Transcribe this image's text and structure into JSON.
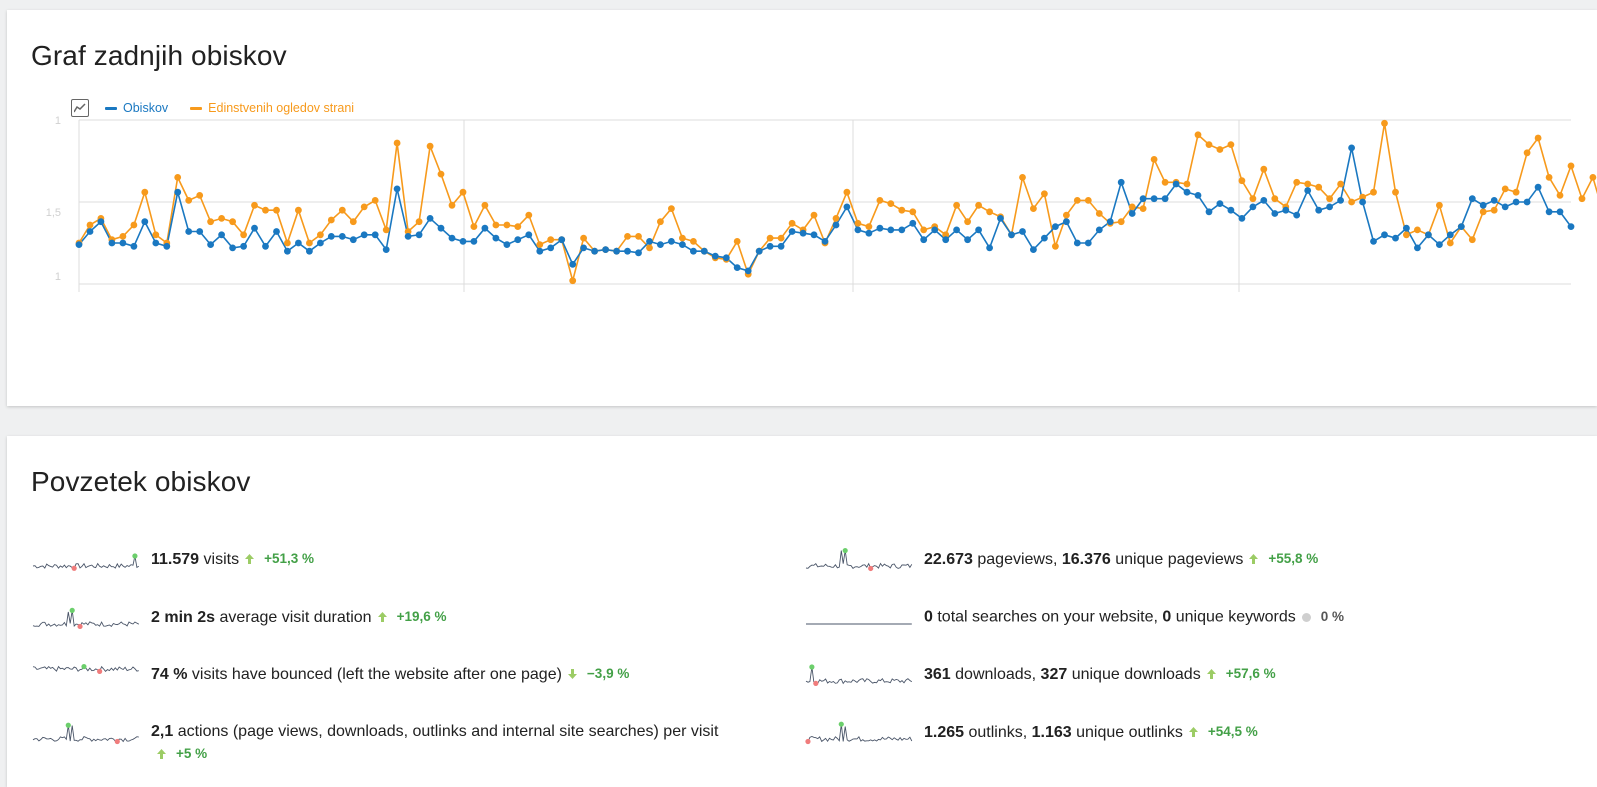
{
  "graph": {
    "title": "Graf zadnjih obiskov",
    "legend": [
      {
        "name": "Obiskov",
        "color": "#1a78c1"
      },
      {
        "name": "Edinstvenih ogledov strani",
        "color": "#f79a1c"
      }
    ],
    "icon": "chart-line-icon"
  },
  "chart_data": {
    "type": "line",
    "yticks": [
      "1",
      "1,5",
      "1"
    ],
    "grid": true,
    "legend_placement": "top-left",
    "series": [
      {
        "name": "Obiskov",
        "color": "#1a78c1",
        "values": [
          0.24,
          0.32,
          0.38,
          0.25,
          0.25,
          0.23,
          0.38,
          0.25,
          0.23,
          0.56,
          0.32,
          0.32,
          0.24,
          0.3,
          0.22,
          0.23,
          0.34,
          0.23,
          0.32,
          0.2,
          0.25,
          0.2,
          0.25,
          0.29,
          0.29,
          0.27,
          0.3,
          0.3,
          0.21,
          0.58,
          0.29,
          0.3,
          0.4,
          0.34,
          0.28,
          0.26,
          0.26,
          0.34,
          0.28,
          0.24,
          0.27,
          0.3,
          0.2,
          0.22,
          0.27,
          0.12,
          0.22,
          0.2,
          0.21,
          0.2,
          0.2,
          0.19,
          0.26,
          0.24,
          0.26,
          0.24,
          0.2,
          0.2,
          0.17,
          0.16,
          0.1,
          0.08,
          0.2,
          0.23,
          0.23,
          0.32,
          0.31,
          0.3,
          0.26,
          0.36,
          0.47,
          0.33,
          0.31,
          0.34,
          0.33,
          0.33,
          0.37,
          0.27,
          0.33,
          0.27,
          0.33,
          0.27,
          0.33,
          0.22,
          0.4,
          0.3,
          0.32,
          0.21,
          0.28,
          0.35,
          0.38,
          0.25,
          0.25,
          0.33,
          0.38,
          0.62,
          0.43,
          0.52,
          0.52,
          0.52,
          0.61,
          0.56,
          0.54,
          0.44,
          0.49,
          0.45,
          0.4,
          0.47,
          0.51,
          0.43,
          0.45,
          0.42,
          0.57,
          0.45,
          0.47,
          0.51,
          0.83,
          0.5,
          0.26,
          0.3,
          0.28,
          0.34,
          0.22,
          0.3,
          0.24,
          0.3,
          0.35,
          0.52,
          0.48,
          0.51,
          0.47,
          0.5,
          0.5,
          0.59,
          0.44,
          0.44,
          0.35
        ]
      },
      {
        "name": "Edinstvenih ogledov strani",
        "color": "#f79a1c",
        "values": [
          0.25,
          0.36,
          0.4,
          0.27,
          0.29,
          0.36,
          0.56,
          0.3,
          0.25,
          0.65,
          0.51,
          0.54,
          0.38,
          0.4,
          0.38,
          0.3,
          0.48,
          0.45,
          0.45,
          0.25,
          0.45,
          0.25,
          0.3,
          0.39,
          0.45,
          0.38,
          0.47,
          0.51,
          0.33,
          0.86,
          0.32,
          0.38,
          0.84,
          0.67,
          0.48,
          0.56,
          0.35,
          0.48,
          0.36,
          0.36,
          0.35,
          0.42,
          0.24,
          0.27,
          0.27,
          0.02,
          0.28,
          0.2,
          0.21,
          0.2,
          0.29,
          0.29,
          0.22,
          0.38,
          0.46,
          0.28,
          0.26,
          0.2,
          0.16,
          0.15,
          0.26,
          0.06,
          0.2,
          0.28,
          0.28,
          0.37,
          0.33,
          0.42,
          0.25,
          0.4,
          0.56,
          0.37,
          0.35,
          0.51,
          0.49,
          0.45,
          0.44,
          0.33,
          0.35,
          0.3,
          0.48,
          0.38,
          0.48,
          0.44,
          0.41,
          0.3,
          0.65,
          0.46,
          0.55,
          0.23,
          0.42,
          0.51,
          0.51,
          0.43,
          0.37,
          0.38,
          0.47,
          0.46,
          0.76,
          0.62,
          0.62,
          0.61,
          0.91,
          0.85,
          0.82,
          0.85,
          0.63,
          0.52,
          0.7,
          0.52,
          0.47,
          0.62,
          0.61,
          0.59,
          0.52,
          0.61,
          0.5,
          0.53,
          0.56,
          0.98,
          0.56,
          0.3,
          0.33,
          0.3,
          0.48,
          0.25,
          0.35,
          0.27,
          0.44,
          0.45,
          0.58,
          0.56,
          0.8,
          0.89,
          0.65,
          0.54,
          0.72,
          0.52,
          0.65,
          0.42
        ]
      }
    ]
  },
  "summary": {
    "title": "Povzetek obiskov",
    "metrics": [
      {
        "id": "visits",
        "parts": [
          {
            "b": "11.579"
          },
          {
            "t": " visits"
          }
        ],
        "trend": "+51,3 %",
        "dir": "up"
      },
      {
        "id": "pageviews",
        "parts": [
          {
            "b": "22.673"
          },
          {
            "t": " pageviews, "
          },
          {
            "b": "16.376"
          },
          {
            "t": " unique pageviews"
          }
        ],
        "trend": "+55,8 %",
        "dir": "up"
      },
      {
        "id": "duration",
        "parts": [
          {
            "b": "2 min 2s"
          },
          {
            "t": " average visit duration"
          }
        ],
        "trend": "+19,6 %",
        "dir": "up"
      },
      {
        "id": "searches",
        "parts": [
          {
            "b": "0"
          },
          {
            "t": " total searches on your website, "
          },
          {
            "b": "0"
          },
          {
            "t": " unique keywords"
          }
        ],
        "trend": "0 %",
        "dir": "neutral"
      },
      {
        "id": "bounce",
        "parts": [
          {
            "b": "74 %"
          },
          {
            "t": " visits have bounced (left the website after one page)"
          }
        ],
        "trend": "−3,9 %",
        "dir": "down"
      },
      {
        "id": "downloads",
        "parts": [
          {
            "b": "361"
          },
          {
            "t": " downloads, "
          },
          {
            "b": "327"
          },
          {
            "t": " unique downloads"
          }
        ],
        "trend": "+57,6 %",
        "dir": "up"
      },
      {
        "id": "actions",
        "parts": [
          {
            "b": "2,1"
          },
          {
            "t": " actions (page views, downloads, outlinks and internal site searches) per visit"
          }
        ],
        "trend": "+5 %",
        "dir": "up"
      },
      {
        "id": "outlinks",
        "parts": [
          {
            "b": "1.265"
          },
          {
            "t": " outlinks, "
          },
          {
            "b": "1.163"
          },
          {
            "t": " unique outlinks"
          }
        ],
        "trend": "+54,5 %",
        "dir": "up"
      }
    ]
  }
}
